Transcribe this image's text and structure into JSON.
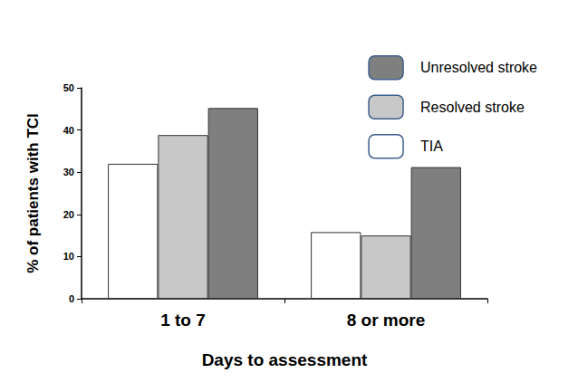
{
  "chart_data": {
    "type": "bar",
    "x_label": "Days to assessment",
    "y_label": "% of patients with TCI",
    "categories": [
      "1 to 7",
      "8 or more"
    ],
    "series": [
      {
        "name": "TIA",
        "color": "#ffffff",
        "values": [
          32,
          15.8
        ]
      },
      {
        "name": "Resolved stroke",
        "color": "#c8c8c8",
        "values": [
          38.8,
          15
        ]
      },
      {
        "name": "Unresolved stroke",
        "color": "#7f7f7f",
        "values": [
          45.2,
          31.2
        ]
      }
    ],
    "ylim": [
      0,
      50
    ],
    "yticks": [
      0,
      10,
      20,
      30,
      40,
      50
    ],
    "grid": false,
    "legend": "top-right"
  }
}
